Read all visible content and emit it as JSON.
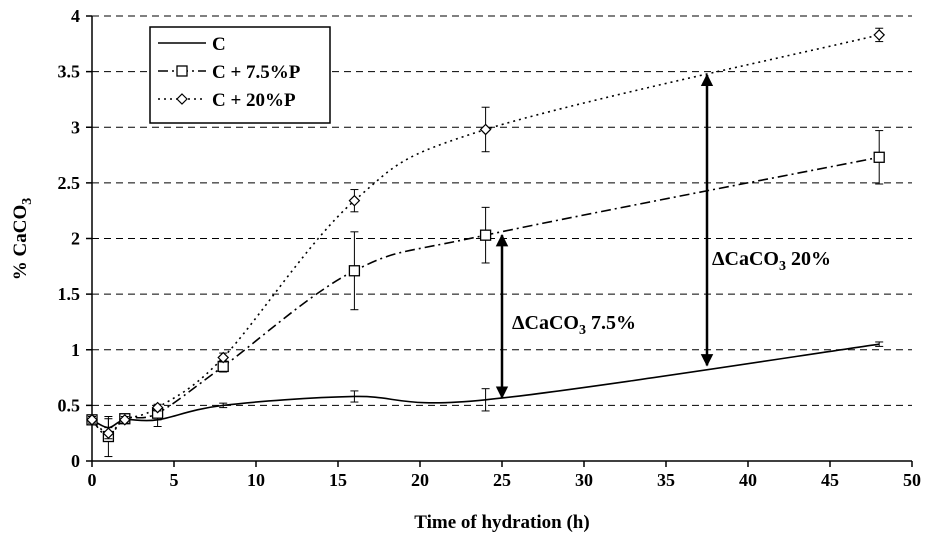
{
  "chart_data": {
    "type": "line",
    "title": "",
    "xlabel": "Time of hydration (h)",
    "ylabel_prefix": "% CaCO",
    "ylabel_sub": "3",
    "xlim": [
      0,
      50
    ],
    "ylim": [
      0,
      4
    ],
    "xticks": [
      0,
      5,
      10,
      15,
      20,
      25,
      30,
      35,
      40,
      45,
      50
    ],
    "yticks": [
      0,
      0.5,
      1,
      1.5,
      2,
      2.5,
      3,
      3.5,
      4
    ],
    "ytick_labels": [
      "0",
      "0.5",
      "1",
      "1.5",
      "2",
      "2.5",
      "3",
      "3.5",
      "4"
    ],
    "grid": "horizontal dashed",
    "legend_position": "top-left",
    "series": [
      {
        "name": "C",
        "line_style": "solid",
        "marker": "none",
        "color": "#000000",
        "x": [
          0,
          1,
          2,
          4,
          8,
          16,
          24,
          48
        ],
        "y": [
          0.37,
          0.3,
          0.37,
          0.37,
          0.5,
          0.58,
          0.55,
          1.05
        ],
        "err": [
          0.03,
          0.08,
          0.03,
          0.06,
          0.02,
          0.05,
          0.1,
          0.02
        ]
      },
      {
        "name": "C + 7.5%P",
        "line_style": "dash-dot",
        "marker": "square",
        "color": "#000000",
        "x": [
          0,
          1,
          2,
          4,
          8,
          16,
          24,
          48
        ],
        "y": [
          0.37,
          0.22,
          0.38,
          0.43,
          0.85,
          1.71,
          2.03,
          2.73
        ],
        "err": [
          0.03,
          0.18,
          0.03,
          0.06,
          0.05,
          0.35,
          0.25,
          0.24
        ]
      },
      {
        "name": "C + 20%P",
        "line_style": "dotted",
        "marker": "diamond",
        "color": "#000000",
        "x": [
          0,
          1,
          2,
          4,
          8,
          16,
          24,
          48
        ],
        "y": [
          0.37,
          0.25,
          0.37,
          0.48,
          0.93,
          2.34,
          2.98,
          3.83
        ],
        "err": [
          0.03,
          0.05,
          0.03,
          0.03,
          0.04,
          0.1,
          0.2,
          0.06
        ]
      }
    ],
    "annotations": [
      {
        "prefix": "ΔCaCO",
        "sub": "3",
        "suffix": " 7.5%",
        "arrow_x": 25,
        "arrow_y": [
          0.57,
          2.03
        ]
      },
      {
        "prefix": "ΔCaCO",
        "sub": "3",
        "suffix": " 20%",
        "arrow_x": 37.5,
        "arrow_y": [
          0.86,
          3.47
        ]
      }
    ]
  }
}
